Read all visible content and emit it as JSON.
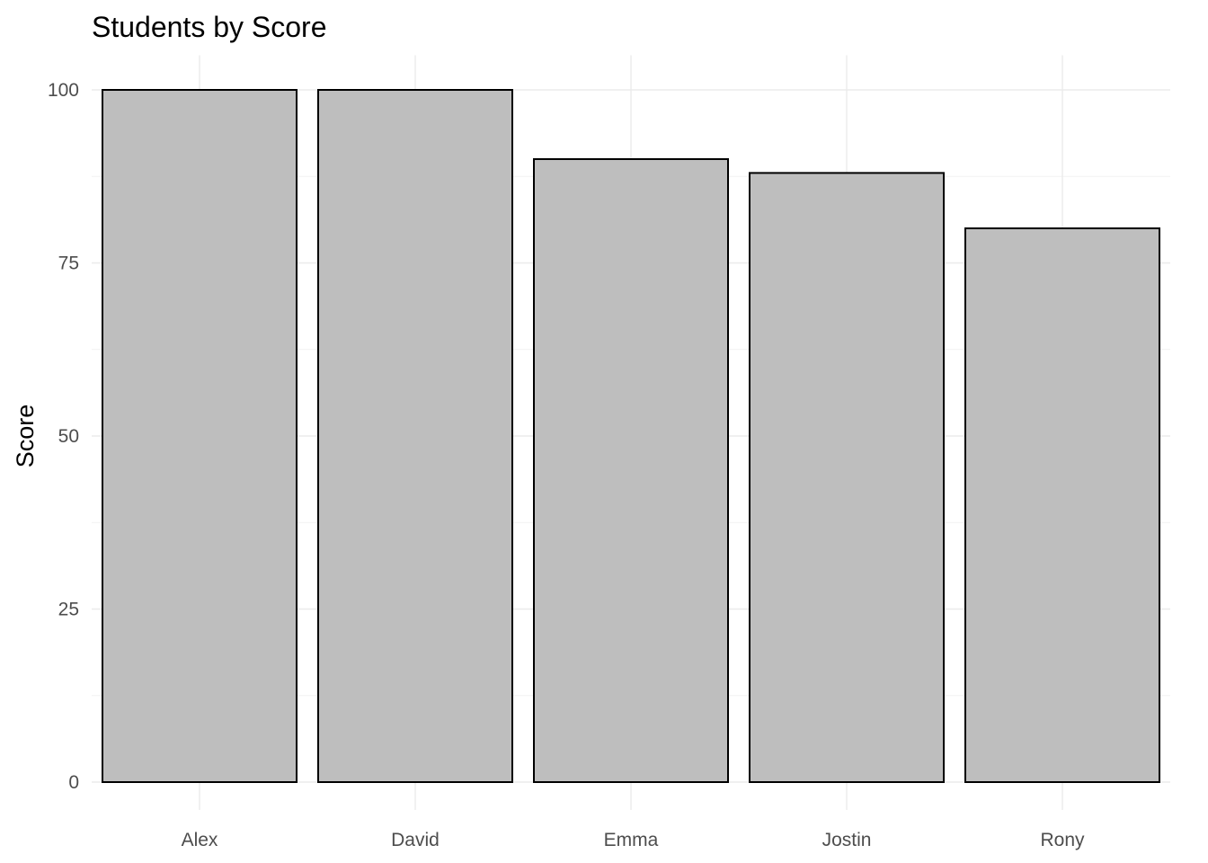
{
  "chart_data": {
    "type": "bar",
    "title": "Students by Score",
    "xlabel": "",
    "ylabel": "Score",
    "categories": [
      "Alex",
      "David",
      "Emma",
      "Jostin",
      "Rony"
    ],
    "values": [
      100,
      100,
      90,
      88,
      80
    ],
    "ylim": [
      0,
      105
    ],
    "y_ticks": [
      0,
      25,
      50,
      75,
      100
    ],
    "grid": true,
    "legend": "none",
    "colors": {
      "bar_fill": "#bebebe",
      "bar_outline": "#000000",
      "grid": "#ebebeb",
      "tick_text": "#4d4d4d"
    }
  }
}
